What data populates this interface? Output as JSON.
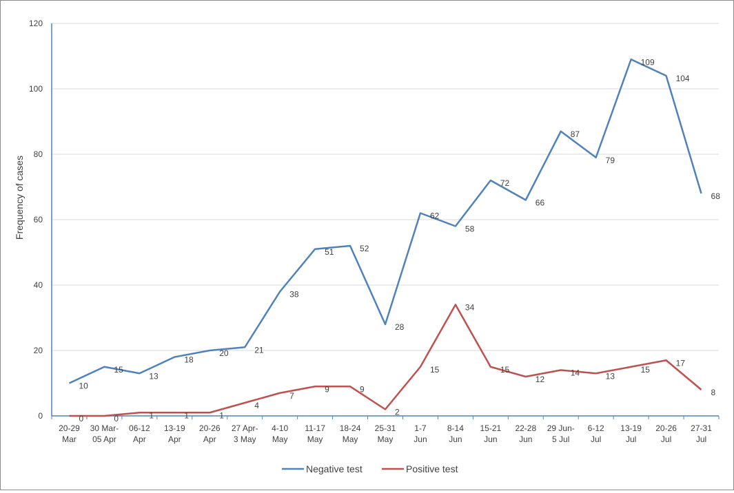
{
  "chart_data": {
    "type": "line",
    "title": "",
    "xlabel": "",
    "ylabel": "Frequency of cases",
    "ylim": [
      0,
      120
    ],
    "yticks": [
      0,
      20,
      40,
      60,
      80,
      100,
      120
    ],
    "grid": true,
    "legend_position": "bottom",
    "categories": [
      [
        "20-29",
        "Mar"
      ],
      [
        "30 Mar-",
        "05 Apr"
      ],
      [
        "06-12",
        "Apr"
      ],
      [
        "13-19",
        "Apr"
      ],
      [
        "20-26",
        "Apr"
      ],
      [
        "27 Apr-",
        "3 May"
      ],
      [
        "4-10",
        "May"
      ],
      [
        "11-17",
        "May"
      ],
      [
        "18-24",
        "May"
      ],
      [
        "25-31",
        "May"
      ],
      [
        "1-7",
        "Jun"
      ],
      [
        "8-14",
        "Jun"
      ],
      [
        "15-21",
        "Jun"
      ],
      [
        "22-28",
        "Jun"
      ],
      [
        "29 Jun-",
        "5 Jul"
      ],
      [
        "6-12",
        "Jul"
      ],
      [
        "13-19",
        "Jul"
      ],
      [
        "20-26",
        "Jul"
      ],
      [
        "27-31",
        "Jul"
      ]
    ],
    "series": [
      {
        "name": "Negative test",
        "color": "#4F81BD",
        "values": [
          10,
          15,
          13,
          18,
          20,
          21,
          38,
          51,
          52,
          28,
          62,
          58,
          72,
          66,
          87,
          79,
          109,
          104,
          68
        ]
      },
      {
        "name": "Positive test",
        "color": "#C0504D",
        "values": [
          0,
          0,
          1,
          1,
          1,
          4,
          7,
          9,
          9,
          2,
          15,
          34,
          15,
          12,
          14,
          13,
          15,
          17,
          8
        ]
      }
    ]
  }
}
